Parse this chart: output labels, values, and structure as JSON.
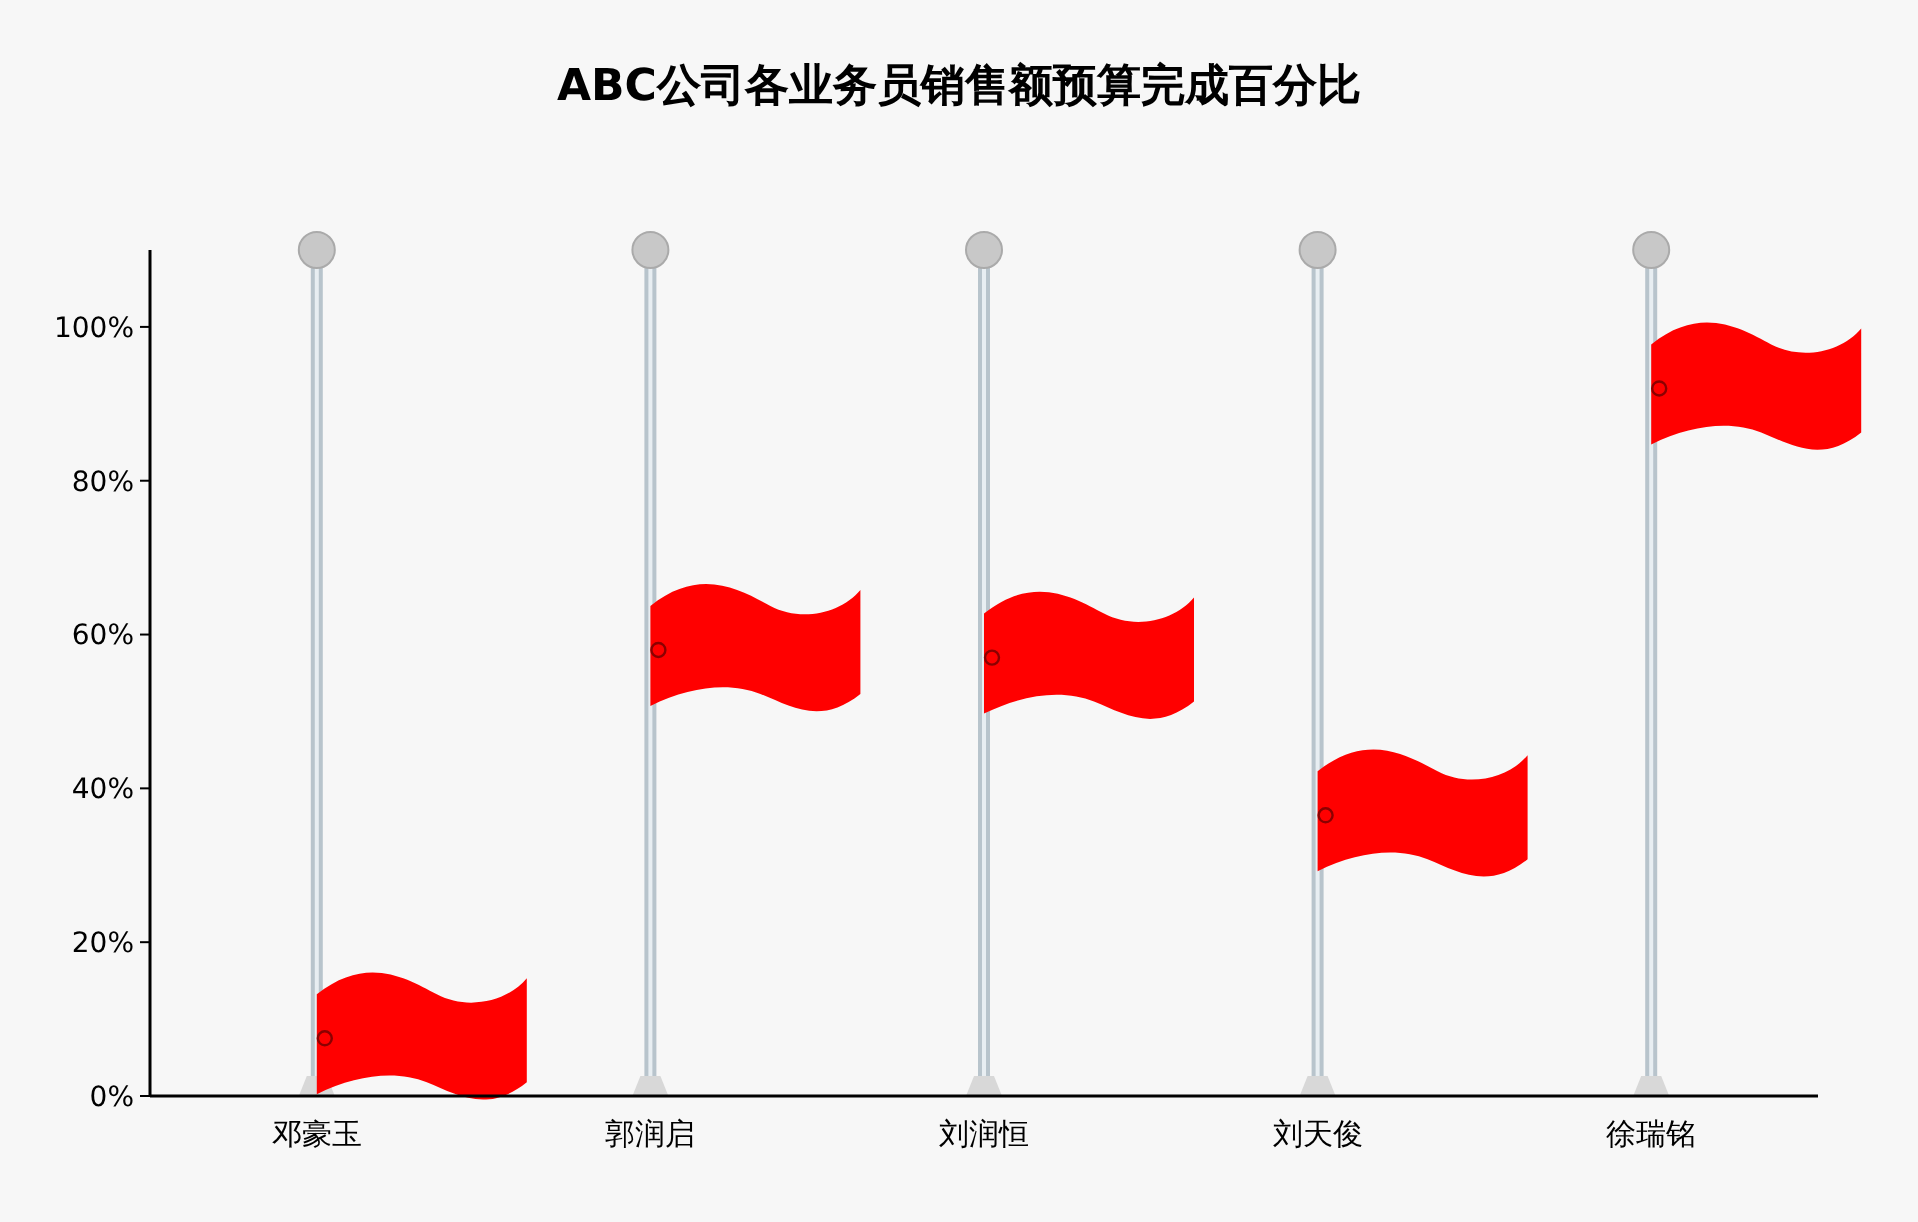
{
  "chart_data": {
    "type": "scatter",
    "title": "ABC公司各业务员销售额预算完成百分比",
    "categories": [
      "邓豪玉",
      "郭润启",
      "刘润恒",
      "刘天俊",
      "徐瑞铭"
    ],
    "series": [
      {
        "color": "#ff0000",
        "values": [
          7.5,
          58,
          57,
          36.5,
          92
        ]
      }
    ],
    "ylim": [
      0,
      110
    ],
    "yticks": [
      {
        "value": 0,
        "label": "0%"
      },
      {
        "value": 20,
        "label": "20%"
      },
      {
        "value": 40,
        "label": "40%"
      },
      {
        "value": 60,
        "label": "60%"
      },
      {
        "value": 80,
        "label": "80%"
      },
      {
        "value": 100,
        "label": "100%"
      }
    ],
    "grid": "x"
  }
}
